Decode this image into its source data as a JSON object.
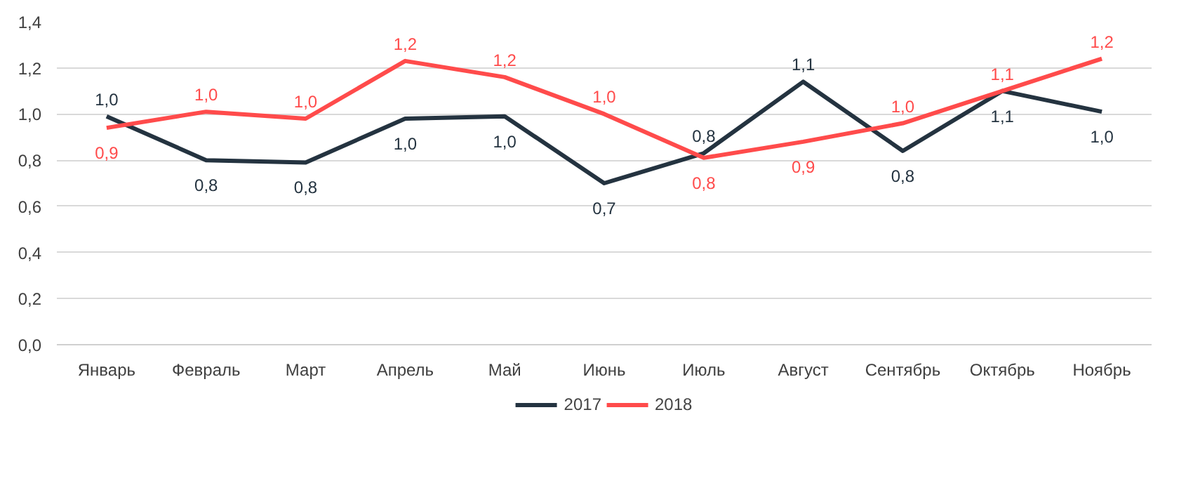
{
  "chart_data": {
    "type": "line",
    "categories": [
      "Январь",
      "Февраль",
      "Март",
      "Апрель",
      "Май",
      "Июнь",
      "Июль",
      "Август",
      "Сентябрь",
      "Октябрь",
      "Ноябрь"
    ],
    "series": [
      {
        "name": "2017",
        "color": "#243340",
        "values": [
          0.99,
          0.8,
          0.79,
          0.98,
          0.99,
          0.7,
          0.83,
          1.14,
          0.84,
          1.1,
          1.01
        ],
        "value_labels": [
          "1,0",
          "0,8",
          "0,8",
          "1,0",
          "1,0",
          "0,7",
          "0,8",
          "1,1",
          "0,8",
          "1,1",
          "1,0"
        ]
      },
      {
        "name": "2018",
        "color": "#ff4b4b",
        "values": [
          0.94,
          1.01,
          0.98,
          1.23,
          1.16,
          1.0,
          0.81,
          0.88,
          0.96,
          1.1,
          1.24
        ],
        "value_labels": [
          "0,9",
          "1,0",
          "1,0",
          "1,2",
          "1,2",
          "1,0",
          "0,8",
          "0,9",
          "1,0",
          "1,1",
          "1,2"
        ]
      }
    ],
    "ylim": [
      0,
      1.4
    ],
    "yticks": [
      {
        "value": 0,
        "label": "0,0"
      },
      {
        "value": 0.2,
        "label": "0,2"
      },
      {
        "value": 0.4,
        "label": "0,4"
      },
      {
        "value": 0.6,
        "label": "0,6"
      },
      {
        "value": 0.8,
        "label": "0,8"
      },
      {
        "value": 1.0,
        "label": "1,0"
      },
      {
        "value": 1.2,
        "label": "1,2"
      },
      {
        "value": 1.4,
        "label": "1,4"
      }
    ],
    "grid": "y",
    "legend": "bottom",
    "marker": "none",
    "line_style": "solid"
  }
}
